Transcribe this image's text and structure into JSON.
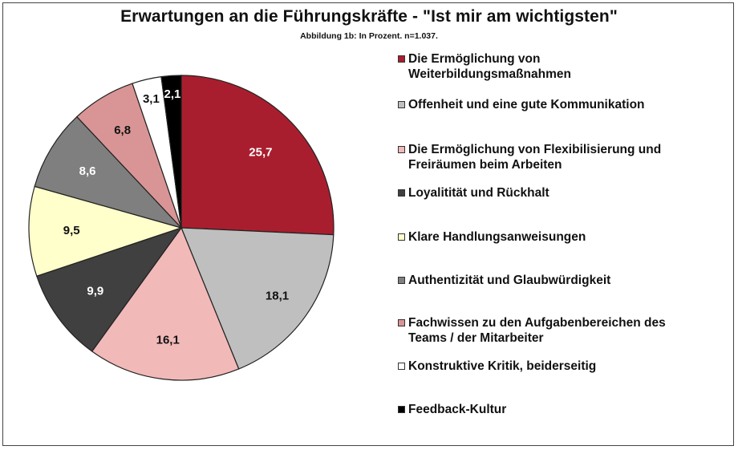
{
  "chart_data": {
    "type": "pie",
    "title": "Erwartungen an die Führungskräfte - \"Ist mir am wichtigsten\"",
    "subtitle": "Abbildung 1b: In Prozent. n=1.037.",
    "slices": [
      {
        "label": "Die Ermöglichung von Weiterbildungsmaßnahmen",
        "value": 25.7,
        "display": "25,7",
        "color": "#A91E2E",
        "label_color": "#ffffff"
      },
      {
        "label": "Offenheit und eine gute Kommunikation",
        "value": 18.1,
        "display": "18,1",
        "color": "#BFBFBF",
        "label_color": "#111111"
      },
      {
        "label": "Die Ermöglichung von Flexibilisierung und Freiräumen beim Arbeiten",
        "value": 16.1,
        "display": "16,1",
        "color": "#F2B9B9",
        "label_color": "#111111"
      },
      {
        "label": "Loyalitität und Rückhalt",
        "value": 9.9,
        "display": "9,9",
        "color": "#404040",
        "label_color": "#ffffff"
      },
      {
        "label": "Klare Handlungsanweisungen",
        "value": 9.5,
        "display": "9,5",
        "color": "#FFFFCC",
        "label_color": "#111111"
      },
      {
        "label": "Authentizität und Glaubwürdigkeit",
        "value": 8.6,
        "display": "8,6",
        "color": "#7F7F7F",
        "label_color": "#ffffff"
      },
      {
        "label": "Fachwissen zu den Aufgabenbereichen des Teams / der Mitarbeiter",
        "value": 6.8,
        "display": "6,8",
        "color": "#D99595",
        "label_color": "#111111"
      },
      {
        "label": "Konstruktive Kritik, beiderseitig",
        "value": 3.1,
        "display": "3,1",
        "color": "#FFFFFF",
        "label_color": "#111111"
      },
      {
        "label": "Feedback-Kultur",
        "value": 2.1,
        "display": "2,1",
        "color": "#000000",
        "label_color": "#ffffff"
      }
    ]
  },
  "legend": {
    "items": [
      {
        "line1": "Die Ermöglichung von",
        "line2": "Weiterbildungsmaßnahmen"
      },
      {
        "line1": "Offenheit und eine gute Kommunikation",
        "line2": ""
      },
      {
        "line1": "Die Ermöglichung von Flexibilisierung und",
        "line2": "Freiräumen beim Arbeiten"
      },
      {
        "line1": "Loyalitität und Rückhalt",
        "line2": ""
      },
      {
        "line1": "Klare Handlungsanweisungen",
        "line2": ""
      },
      {
        "line1": "Authentizität und Glaubwürdigkeit",
        "line2": ""
      },
      {
        "line1": "Fachwissen zu den Aufgabenbereichen des",
        "line2": "Teams / der Mitarbeiter"
      },
      {
        "line1": "Konstruktive Kritik, beiderseitig",
        "line2": ""
      },
      {
        "line1": "Feedback-Kultur",
        "line2": ""
      }
    ]
  }
}
